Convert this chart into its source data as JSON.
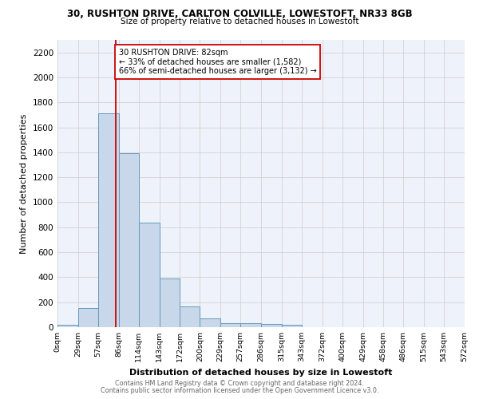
{
  "title_line1": "30, RUSHTON DRIVE, CARLTON COLVILLE, LOWESTOFT, NR33 8GB",
  "title_line2": "Size of property relative to detached houses in Lowestoft",
  "xlabel": "Distribution of detached houses by size in Lowestoft",
  "ylabel": "Number of detached properties",
  "footnote_line1": "Contains HM Land Registry data © Crown copyright and database right 2024.",
  "footnote_line2": "Contains public sector information licensed under the Open Government Licence v3.0.",
  "bar_edges": [
    0,
    29,
    57,
    86,
    114,
    143,
    172,
    200,
    229,
    257,
    286,
    315,
    343,
    372,
    400,
    429,
    458,
    486,
    515,
    543,
    572
  ],
  "bar_heights": [
    20,
    155,
    1710,
    1390,
    835,
    390,
    165,
    70,
    35,
    30,
    25,
    20,
    0,
    0,
    0,
    0,
    0,
    0,
    0,
    0
  ],
  "bar_color": "#c8d8ea",
  "bar_edge_color": "#6699bb",
  "bar_edge_width": 0.7,
  "grid_color": "#cccccc",
  "background_color": "#eef2fa",
  "red_line_x": 82,
  "red_line_color": "#cc0000",
  "annotation_text": "30 RUSHTON DRIVE: 82sqm\n← 33% of detached houses are smaller (1,582)\n66% of semi-detached houses are larger (3,132) →",
  "annotation_box_color": "#ffffff",
  "annotation_box_edge_color": "#cc0000",
  "ylim": [
    0,
    2300
  ],
  "yticks": [
    0,
    200,
    400,
    600,
    800,
    1000,
    1200,
    1400,
    1600,
    1800,
    2000,
    2200
  ],
  "tick_labels": [
    "0sqm",
    "29sqm",
    "57sqm",
    "86sqm",
    "114sqm",
    "143sqm",
    "172sqm",
    "200sqm",
    "229sqm",
    "257sqm",
    "286sqm",
    "315sqm",
    "343sqm",
    "372sqm",
    "400sqm",
    "429sqm",
    "458sqm",
    "486sqm",
    "515sqm",
    "543sqm",
    "572sqm"
  ]
}
